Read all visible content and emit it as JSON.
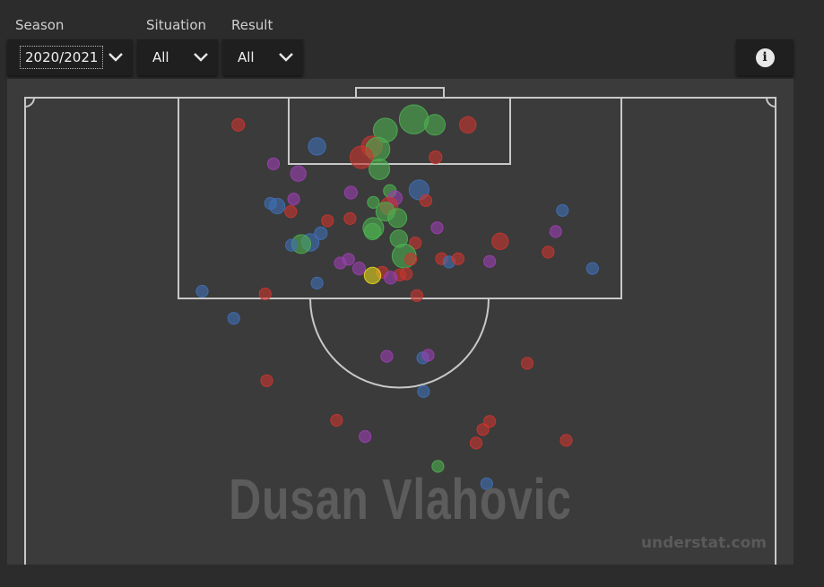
{
  "filters": {
    "season": {
      "label": "Season",
      "value": "2020/2021"
    },
    "situation": {
      "label": "Situation",
      "value": "All"
    },
    "result": {
      "label": "Result",
      "value": "All"
    }
  },
  "info_button": {
    "icon": "info-icon"
  },
  "player_name": "Dusan Vlahovic",
  "watermark": "understat.com",
  "colors": {
    "Goal": "#4caf50",
    "SavedShot": "#3f6fb5",
    "MissedShot": "#c9352f",
    "BlockedShot": "#9b3fb0",
    "ShotOnPost": "#e5d61c"
  },
  "chart_data": {
    "type": "scatter",
    "shots": [
      {
        "x": 0.284,
        "y": 0.05,
        "xg": 0.04,
        "result": "MissedShot"
      },
      {
        "x": 0.389,
        "y": 0.09,
        "xg": 0.12,
        "result": "SavedShot"
      },
      {
        "x": 0.48,
        "y": 0.06,
        "xg": 0.3,
        "result": "Goal"
      },
      {
        "x": 0.518,
        "y": 0.04,
        "xg": 0.5,
        "result": "Goal"
      },
      {
        "x": 0.546,
        "y": 0.05,
        "xg": 0.2,
        "result": "Goal"
      },
      {
        "x": 0.59,
        "y": 0.05,
        "xg": 0.1,
        "result": "MissedShot"
      },
      {
        "x": 0.462,
        "y": 0.09,
        "xg": 0.2,
        "result": "MissedShot"
      },
      {
        "x": 0.47,
        "y": 0.095,
        "xg": 0.3,
        "result": "Goal"
      },
      {
        "x": 0.448,
        "y": 0.11,
        "xg": 0.25,
        "result": "MissedShot"
      },
      {
        "x": 0.472,
        "y": 0.132,
        "xg": 0.2,
        "result": "Goal"
      },
      {
        "x": 0.547,
        "y": 0.11,
        "xg": 0.04,
        "result": "MissedShot"
      },
      {
        "x": 0.331,
        "y": 0.122,
        "xg": 0.03,
        "result": "BlockedShot"
      },
      {
        "x": 0.364,
        "y": 0.14,
        "xg": 0.08,
        "result": "BlockedShot"
      },
      {
        "x": 0.525,
        "y": 0.17,
        "xg": 0.18,
        "result": "SavedShot"
      },
      {
        "x": 0.434,
        "y": 0.175,
        "xg": 0.04,
        "result": "BlockedShot"
      },
      {
        "x": 0.486,
        "y": 0.172,
        "xg": 0.04,
        "result": "Goal"
      },
      {
        "x": 0.493,
        "y": 0.185,
        "xg": 0.06,
        "result": "BlockedShot"
      },
      {
        "x": 0.464,
        "y": 0.193,
        "xg": 0.03,
        "result": "Goal"
      },
      {
        "x": 0.534,
        "y": 0.19,
        "xg": 0.03,
        "result": "MissedShot"
      },
      {
        "x": 0.485,
        "y": 0.2,
        "xg": 0.12,
        "result": "MissedShot"
      },
      {
        "x": 0.48,
        "y": 0.21,
        "xg": 0.15,
        "result": "Goal"
      },
      {
        "x": 0.496,
        "y": 0.222,
        "xg": 0.15,
        "result": "Goal"
      },
      {
        "x": 0.358,
        "y": 0.187,
        "xg": 0.03,
        "result": "BlockedShot"
      },
      {
        "x": 0.327,
        "y": 0.195,
        "xg": 0.03,
        "result": "SavedShot"
      },
      {
        "x": 0.336,
        "y": 0.2,
        "xg": 0.08,
        "result": "SavedShot"
      },
      {
        "x": 0.354,
        "y": 0.21,
        "xg": 0.03,
        "result": "MissedShot"
      },
      {
        "x": 0.403,
        "y": 0.227,
        "xg": 0.03,
        "result": "MissedShot"
      },
      {
        "x": 0.433,
        "y": 0.223,
        "xg": 0.03,
        "result": "MissedShot"
      },
      {
        "x": 0.394,
        "y": 0.25,
        "xg": 0.04,
        "result": "SavedShot"
      },
      {
        "x": 0.464,
        "y": 0.24,
        "xg": 0.2,
        "result": "Goal"
      },
      {
        "x": 0.463,
        "y": 0.247,
        "xg": 0.1,
        "result": "Goal"
      },
      {
        "x": 0.498,
        "y": 0.26,
        "xg": 0.12,
        "result": "Goal"
      },
      {
        "x": 0.549,
        "y": 0.24,
        "xg": 0.03,
        "result": "BlockedShot"
      },
      {
        "x": 0.38,
        "y": 0.267,
        "xg": 0.12,
        "result": "SavedShot"
      },
      {
        "x": 0.368,
        "y": 0.27,
        "xg": 0.15,
        "result": "Goal"
      },
      {
        "x": 0.355,
        "y": 0.272,
        "xg": 0.03,
        "result": "SavedShot"
      },
      {
        "x": 0.52,
        "y": 0.268,
        "xg": 0.03,
        "result": "MissedShot"
      },
      {
        "x": 0.505,
        "y": 0.292,
        "xg": 0.3,
        "result": "Goal"
      },
      {
        "x": 0.514,
        "y": 0.298,
        "xg": 0.03,
        "result": "MissedShot"
      },
      {
        "x": 0.431,
        "y": 0.298,
        "xg": 0.03,
        "result": "BlockedShot"
      },
      {
        "x": 0.42,
        "y": 0.305,
        "xg": 0.03,
        "result": "BlockedShot"
      },
      {
        "x": 0.445,
        "y": 0.315,
        "xg": 0.04,
        "result": "BlockedShot"
      },
      {
        "x": 0.476,
        "y": 0.322,
        "xg": 0.03,
        "result": "MissedShot"
      },
      {
        "x": 0.499,
        "y": 0.327,
        "xg": 0.03,
        "result": "MissedShot"
      },
      {
        "x": 0.508,
        "y": 0.325,
        "xg": 0.03,
        "result": "MissedShot"
      },
      {
        "x": 0.487,
        "y": 0.332,
        "xg": 0.04,
        "result": "BlockedShot"
      },
      {
        "x": 0.463,
        "y": 0.328,
        "xg": 0.1,
        "result": "ShotOnPost"
      },
      {
        "x": 0.555,
        "y": 0.297,
        "xg": 0.03,
        "result": "MissedShot"
      },
      {
        "x": 0.565,
        "y": 0.303,
        "xg": 0.03,
        "result": "SavedShot"
      },
      {
        "x": 0.577,
        "y": 0.297,
        "xg": 0.03,
        "result": "MissedShot"
      },
      {
        "x": 0.619,
        "y": 0.302,
        "xg": 0.03,
        "result": "BlockedShot"
      },
      {
        "x": 0.633,
        "y": 0.265,
        "xg": 0.1,
        "result": "MissedShot"
      },
      {
        "x": 0.697,
        "y": 0.285,
        "xg": 0.03,
        "result": "MissedShot"
      },
      {
        "x": 0.707,
        "y": 0.247,
        "xg": 0.03,
        "result": "BlockedShot"
      },
      {
        "x": 0.716,
        "y": 0.208,
        "xg": 0.03,
        "result": "SavedShot"
      },
      {
        "x": 0.756,
        "y": 0.315,
        "xg": 0.03,
        "result": "SavedShot"
      },
      {
        "x": 0.236,
        "y": 0.357,
        "xg": 0.03,
        "result": "SavedShot"
      },
      {
        "x": 0.32,
        "y": 0.362,
        "xg": 0.03,
        "result": "MissedShot"
      },
      {
        "x": 0.389,
        "y": 0.342,
        "xg": 0.03,
        "result": "SavedShot"
      },
      {
        "x": 0.522,
        "y": 0.365,
        "xg": 0.03,
        "result": "MissedShot"
      },
      {
        "x": 0.278,
        "y": 0.407,
        "xg": 0.03,
        "result": "SavedShot"
      },
      {
        "x": 0.482,
        "y": 0.477,
        "xg": 0.03,
        "result": "BlockedShot"
      },
      {
        "x": 0.53,
        "y": 0.48,
        "xg": 0.03,
        "result": "SavedShot"
      },
      {
        "x": 0.537,
        "y": 0.475,
        "xg": 0.03,
        "result": "BlockedShot"
      },
      {
        "x": 0.669,
        "y": 0.49,
        "xg": 0.03,
        "result": "MissedShot"
      },
      {
        "x": 0.322,
        "y": 0.522,
        "xg": 0.03,
        "result": "MissedShot"
      },
      {
        "x": 0.531,
        "y": 0.542,
        "xg": 0.03,
        "result": "SavedShot"
      },
      {
        "x": 0.415,
        "y": 0.595,
        "xg": 0.03,
        "result": "MissedShot"
      },
      {
        "x": 0.453,
        "y": 0.625,
        "xg": 0.03,
        "result": "BlockedShot"
      },
      {
        "x": 0.619,
        "y": 0.597,
        "xg": 0.03,
        "result": "MissedShot"
      },
      {
        "x": 0.61,
        "y": 0.612,
        "xg": 0.03,
        "result": "MissedShot"
      },
      {
        "x": 0.601,
        "y": 0.637,
        "xg": 0.03,
        "result": "MissedShot"
      },
      {
        "x": 0.721,
        "y": 0.632,
        "xg": 0.03,
        "result": "MissedShot"
      },
      {
        "x": 0.55,
        "y": 0.68,
        "xg": 0.03,
        "result": "Goal"
      },
      {
        "x": 0.615,
        "y": 0.712,
        "xg": 0.03,
        "result": "SavedShot"
      }
    ]
  }
}
